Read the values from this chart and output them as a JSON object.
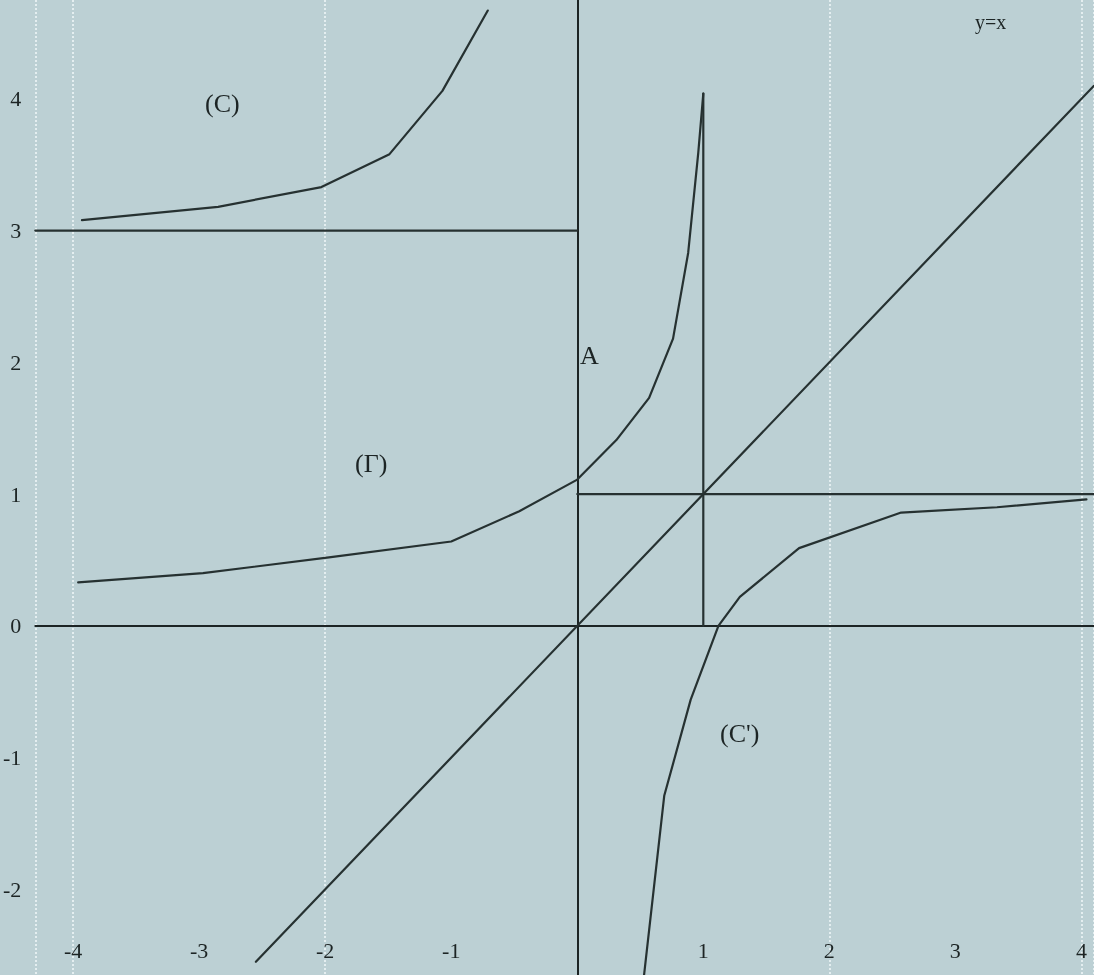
{
  "chart_data": {
    "type": "line",
    "marker": "none",
    "line_style": "solid",
    "grid": "x",
    "xlim": [
      -4.3,
      4.1
    ],
    "ylim": [
      -2.65,
      4.75
    ],
    "xticks": [
      -4,
      -3,
      -2,
      -1,
      1,
      2,
      3,
      4
    ],
    "yticks": [
      -2,
      -1,
      0,
      1,
      2,
      3,
      4
    ],
    "series": [
      {
        "color": "#263131",
        "x": [
          -3.93,
          -2.85,
          -2.03,
          -1.49,
          -1.07,
          -0.71
        ],
        "values": [
          3.08,
          3.18,
          3.33,
          3.58,
          4.06,
          4.67
        ]
      },
      {
        "color": "#263131",
        "x": [
          -3.96,
          -2.97,
          -1.97,
          -1.0,
          -0.46,
          0,
          0.31,
          0.57,
          0.76,
          0.88,
          0.96,
          1.0
        ],
        "values": [
          0.33,
          0.4,
          0.52,
          0.64,
          0.87,
          1.11,
          1.41,
          1.73,
          2.18,
          2.83,
          3.59,
          4.04
        ]
      },
      {
        "color": "#263131",
        "x": [
          0.53,
          0.69,
          0.9,
          1.12,
          1.29,
          1.76,
          2.57,
          3.33,
          4.04
        ],
        "values": [
          -2.65,
          -1.29,
          -0.56,
          0,
          0.22,
          0.59,
          0.86,
          0.9,
          0.96
        ]
      },
      {
        "color": "#263131",
        "x": [
          -2.55,
          4.1
        ],
        "values": [
          -2.55,
          4.1
        ]
      },
      {
        "color": "#263131",
        "x": [
          -4.3,
          0
        ],
        "values": [
          3,
          3
        ]
      },
      {
        "color": "#263131",
        "x": [
          0,
          4.1
        ],
        "values": [
          1,
          1
        ]
      },
      {
        "color": "#263131",
        "x": [
          1,
          1
        ],
        "values": [
          0,
          4.04
        ]
      }
    ],
    "annotations": [
      "(C)",
      "(Γ)",
      "(C')",
      "y=x",
      "A"
    ]
  }
}
